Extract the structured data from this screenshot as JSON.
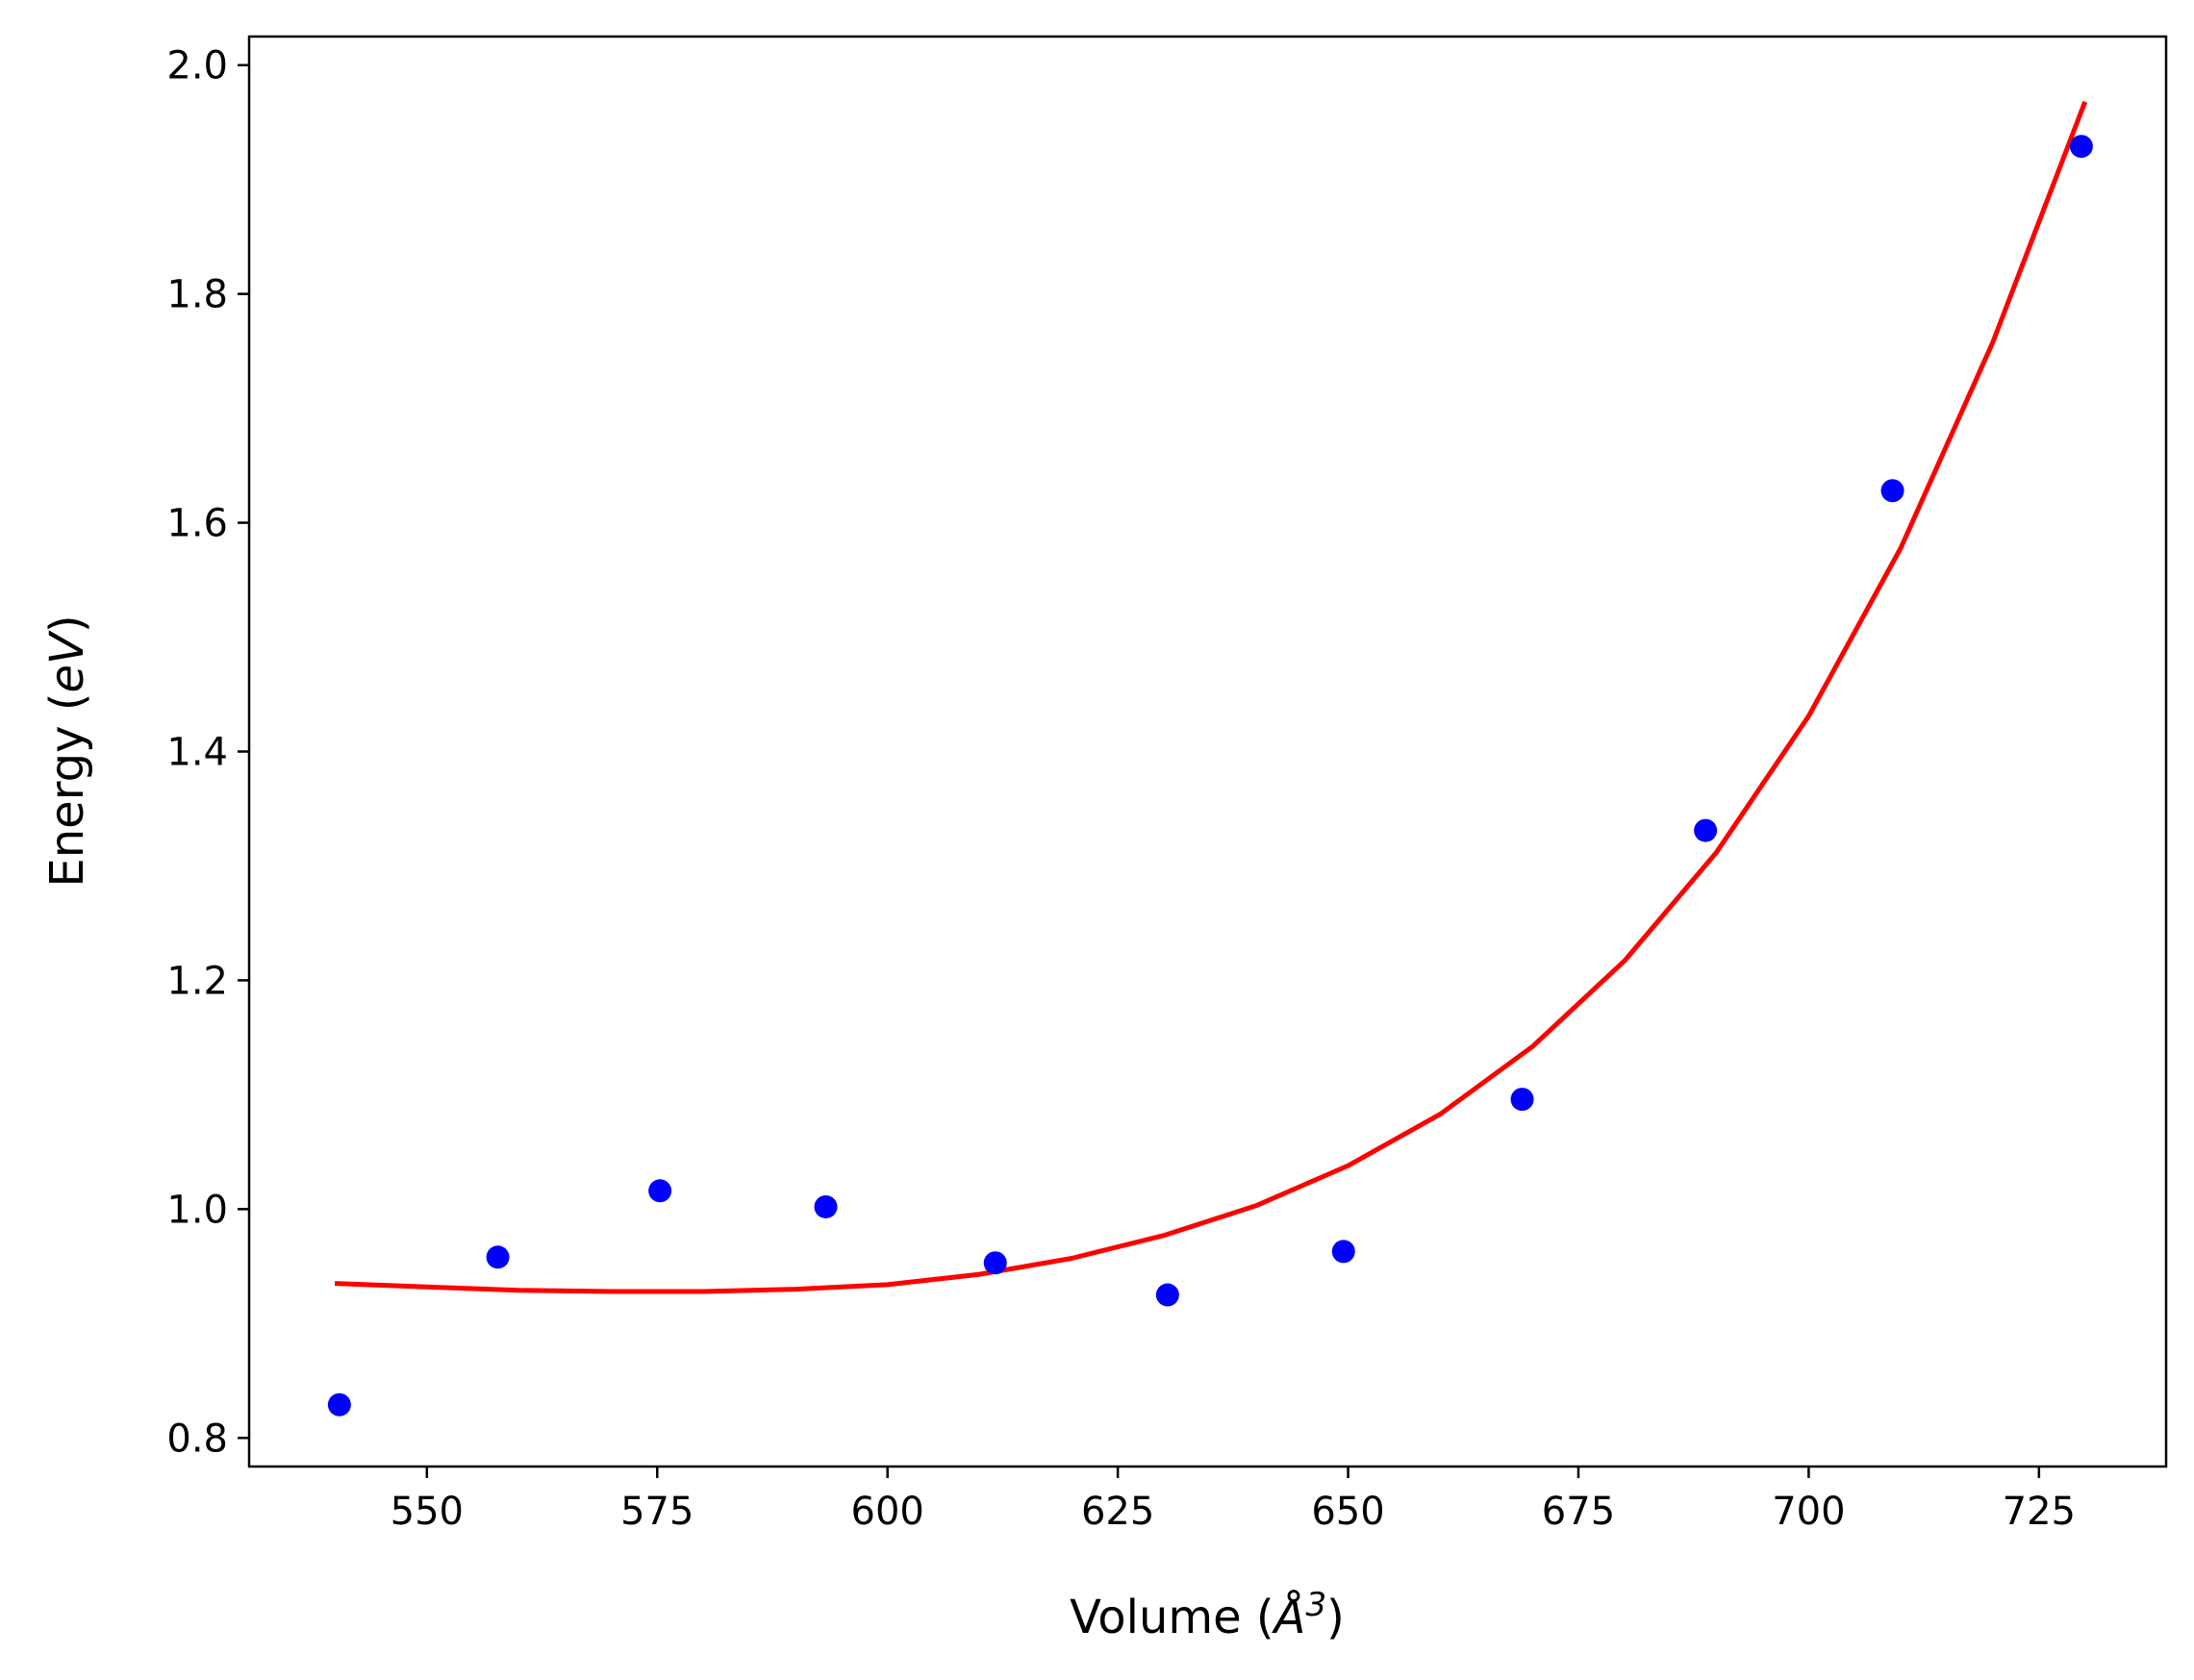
{
  "chart_data": {
    "type": "scatter",
    "xlabel": {
      "prefix": "Volume (",
      "symbol": "Å",
      "exponent": "3",
      "suffix": ")"
    },
    "ylabel": {
      "prefix": "Energy (",
      "symbol": "eV",
      "suffix": ")"
    },
    "xlim": [
      530.7,
      738.8
    ],
    "ylim": [
      0.775,
      2.025
    ],
    "x_ticks": [
      550,
      575,
      600,
      625,
      650,
      675,
      700,
      725
    ],
    "y_ticks": [
      0.8,
      1.0,
      1.2,
      1.4,
      1.6,
      1.8,
      2.0
    ],
    "x_tick_labels": [
      "550",
      "575",
      "600",
      "625",
      "650",
      "675",
      "700",
      "725"
    ],
    "y_tick_labels": [
      "0.8",
      "1.0",
      "1.2",
      "1.4",
      "1.6",
      "1.8",
      "2.0"
    ],
    "grid": false,
    "series": [
      {
        "kind": "scatter",
        "color": "#0000ff",
        "points": [
          {
            "x": 540.5,
            "y": 0.829
          },
          {
            "x": 557.7,
            "y": 0.958
          },
          {
            "x": 575.3,
            "y": 1.016
          },
          {
            "x": 593.3,
            "y": 1.002
          },
          {
            "x": 611.7,
            "y": 0.953
          },
          {
            "x": 630.4,
            "y": 0.925
          },
          {
            "x": 649.5,
            "y": 0.963
          },
          {
            "x": 668.9,
            "y": 1.096
          },
          {
            "x": 688.8,
            "y": 1.331
          },
          {
            "x": 709.1,
            "y": 1.628
          },
          {
            "x": 729.6,
            "y": 1.929
          }
        ]
      },
      {
        "kind": "line",
        "color": "#ff0000",
        "points": [
          {
            "x": 540.0,
            "y": 0.935
          },
          {
            "x": 550.0,
            "y": 0.932
          },
          {
            "x": 560.0,
            "y": 0.929
          },
          {
            "x": 570.0,
            "y": 0.928
          },
          {
            "x": 580.0,
            "y": 0.928
          },
          {
            "x": 590.0,
            "y": 0.93
          },
          {
            "x": 600.0,
            "y": 0.934
          },
          {
            "x": 610.0,
            "y": 0.943
          },
          {
            "x": 620.0,
            "y": 0.957
          },
          {
            "x": 630.0,
            "y": 0.977
          },
          {
            "x": 640.0,
            "y": 1.003
          },
          {
            "x": 650.0,
            "y": 1.038
          },
          {
            "x": 660.0,
            "y": 1.083
          },
          {
            "x": 670.0,
            "y": 1.142
          },
          {
            "x": 680.0,
            "y": 1.217
          },
          {
            "x": 690.0,
            "y": 1.312
          },
          {
            "x": 700.0,
            "y": 1.431
          },
          {
            "x": 710.0,
            "y": 1.578
          },
          {
            "x": 720.0,
            "y": 1.758
          },
          {
            "x": 730.0,
            "y": 1.968
          }
        ]
      }
    ]
  }
}
